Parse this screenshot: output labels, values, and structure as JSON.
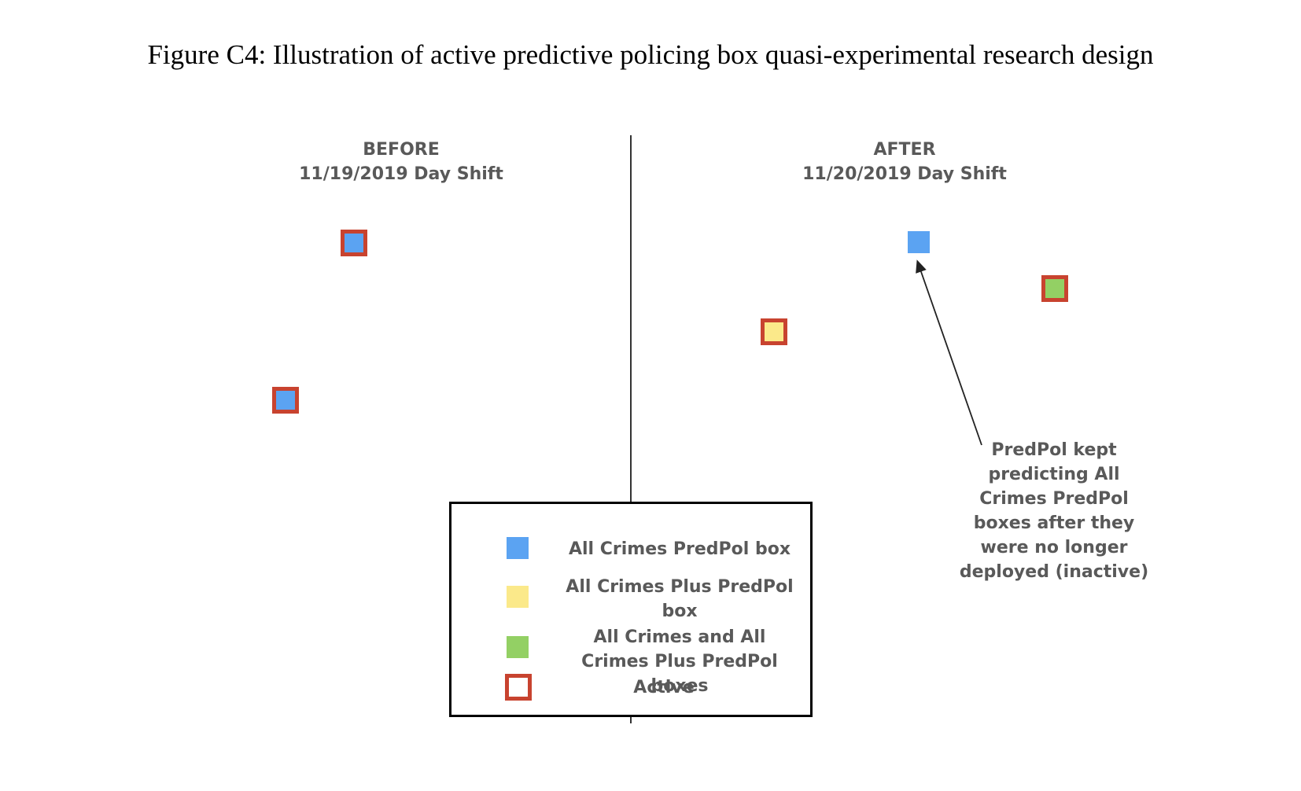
{
  "figure": {
    "caption": "Figure C4: Illustration of active predictive policing box quasi-experimental research design"
  },
  "before": {
    "title": "BEFORE",
    "subtitle": "11/19/2019 Day Shift"
  },
  "after": {
    "title": "AFTER",
    "subtitle": "11/20/2019 Day Shift"
  },
  "annotation": {
    "lines": [
      "PredPol kept",
      "predicting All",
      "Crimes PredPol",
      "boxes after they",
      "were no longer",
      "deployed (inactive)"
    ]
  },
  "legend": {
    "items": [
      {
        "label": "All Crimes PredPol box",
        "swatch": "blue"
      },
      {
        "label": "All Crimes Plus PredPol box",
        "swatch": "yellow"
      },
      {
        "label": "All Crimes and All Crimes Plus PredPol boxes",
        "swatch": "green"
      },
      {
        "label": "Active",
        "swatch": "active-outline"
      }
    ]
  },
  "colors": {
    "all_crimes_blue": "#5ba3f2",
    "all_crimes_plus_yellow": "#fbe98a",
    "both_green": "#93d064",
    "active_red": "#c8432f",
    "label_gray": "#595959"
  }
}
